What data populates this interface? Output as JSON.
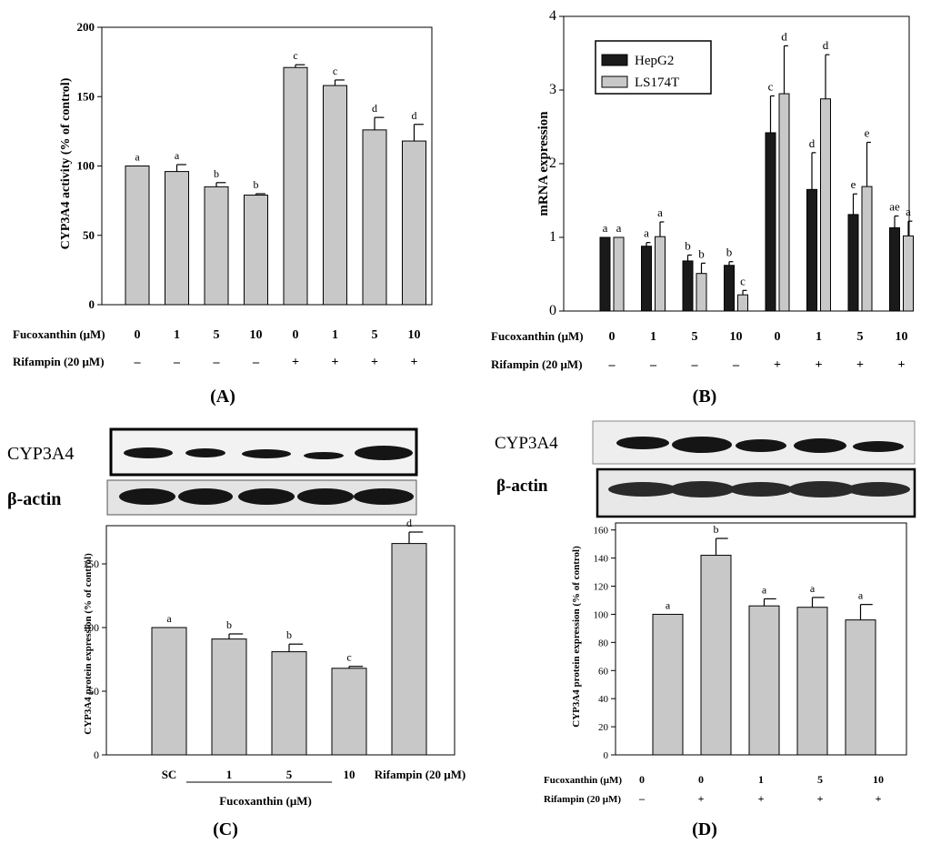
{
  "colors": {
    "bar": "#c8c8c8",
    "bar_dark": "#1a1a1a",
    "bar_light": "#c8c8c8",
    "axis": "#000000",
    "band": "#151515"
  },
  "chart_data": [
    {
      "panel": "(A)",
      "type": "bar",
      "ylabel": "CYP3A4 activity (% of control)",
      "ylim": [
        0,
        200
      ],
      "yticks": [
        "0",
        "50",
        "100",
        "150",
        "200"
      ],
      "values": [
        100,
        96,
        85,
        79,
        171,
        158,
        126,
        118
      ],
      "errors": [
        0,
        5,
        3,
        1,
        2,
        4,
        9,
        12
      ],
      "letters": [
        "a",
        "a",
        "b",
        "b",
        "c",
        "c",
        "d",
        "d"
      ],
      "table": {
        "row1_label": "Fucoxanthin (μM)",
        "row1": [
          "0",
          "1",
          "5",
          "10",
          "0",
          "1",
          "5",
          "10"
        ],
        "row2_label": "Rifampin (20 μM)",
        "row2": [
          "–",
          "–",
          "–",
          "–",
          "+",
          "+",
          "+",
          "+"
        ]
      }
    },
    {
      "panel": "(B)",
      "type": "bar",
      "ylabel": "mRNA expression",
      "ylim": [
        0,
        4
      ],
      "yticks": [
        "0",
        "1",
        "2",
        "3",
        "4"
      ],
      "series": [
        {
          "name": "HepG2",
          "values": [
            1.0,
            0.88,
            0.68,
            0.62,
            2.42,
            1.65,
            1.31,
            1.13
          ],
          "errors": [
            0,
            0.05,
            0.08,
            0.05,
            0.5,
            0.5,
            0.28,
            0.16
          ],
          "letters": [
            "a",
            "a",
            "b",
            "b",
            "c",
            "d",
            "e",
            "ae"
          ]
        },
        {
          "name": "LS174T",
          "values": [
            1.0,
            1.01,
            0.51,
            0.22,
            2.95,
            2.88,
            1.69,
            1.02
          ],
          "errors": [
            0,
            0.2,
            0.14,
            0.06,
            0.65,
            0.6,
            0.6,
            0.2
          ],
          "letters": [
            "a",
            "a",
            "b",
            "c",
            "d",
            "d",
            "e",
            "a"
          ]
        }
      ],
      "table": {
        "row1_label": "Fucoxanthin (μM)",
        "row1": [
          "0",
          "1",
          "5",
          "10",
          "0",
          "1",
          "5",
          "10"
        ],
        "row2_label": "Rifampin (20 μM)",
        "row2": [
          "–",
          "–",
          "–",
          "–",
          "+",
          "+",
          "+",
          "+"
        ]
      }
    },
    {
      "panel": "(C)",
      "type": "bar",
      "blot_labels": [
        "CYP3A4",
        "β-actin"
      ],
      "ylabel": "CYP3A4 protein expression (% of control)",
      "ylim": [
        0,
        180
      ],
      "yticks": [
        "0",
        "50",
        "100",
        "150"
      ],
      "categories": [
        "SC",
        "1",
        "5",
        "10",
        "Rifampin (20 μM)"
      ],
      "values": [
        100,
        91,
        81,
        68,
        166
      ],
      "errors": [
        0,
        4,
        6,
        1.5,
        9
      ],
      "letters": [
        "a",
        "b",
        "b",
        "c",
        "d"
      ],
      "group_label": "Fucoxanthin (μM)"
    },
    {
      "panel": "(D)",
      "type": "bar",
      "blot_labels": [
        "CYP3A4",
        "β-actin"
      ],
      "ylabel": "CYP3A4 protein expression (% of control)",
      "ylim": [
        0,
        165
      ],
      "yticks": [
        "0",
        "20",
        "40",
        "60",
        "80",
        "100",
        "120",
        "140",
        "160"
      ],
      "values": [
        100,
        142,
        106,
        105,
        96
      ],
      "errors": [
        0,
        12,
        5,
        7,
        11
      ],
      "letters": [
        "a",
        "b",
        "a",
        "a",
        "a"
      ],
      "table": {
        "row1_label": "Fucoxanthin (μM)",
        "row1": [
          "0",
          "0",
          "1",
          "5",
          "10"
        ],
        "row2_label": "Rifampin (20 μM)",
        "row2": [
          "–",
          "+",
          "+",
          "+",
          "+"
        ]
      }
    }
  ]
}
